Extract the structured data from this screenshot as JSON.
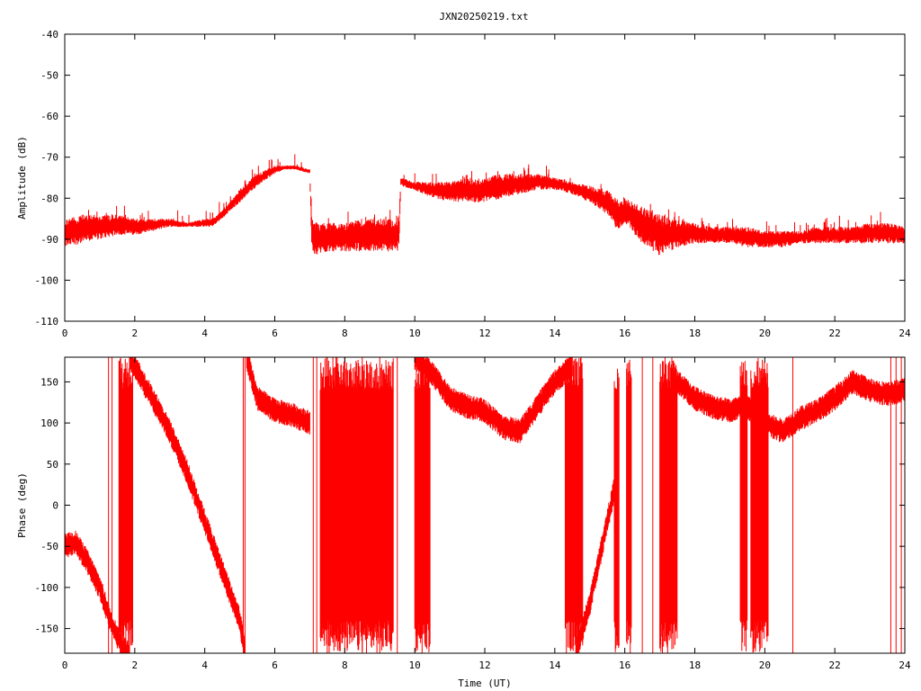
{
  "title": "JXN20250219.txt",
  "chart_data": [
    {
      "type": "line",
      "ylabel": "Amplitude (dB)",
      "xlim": [
        0,
        24
      ],
      "ylim": [
        -110,
        -40
      ],
      "x_ticks": [
        "0",
        "2",
        "4",
        "6",
        "8",
        "10",
        "12",
        "14",
        "16",
        "18",
        "20",
        "22",
        "24"
      ],
      "y_ticks": [
        "-110",
        "-100",
        "-90",
        "-80",
        "-70",
        "-60",
        "-50",
        "-40"
      ],
      "series_color": "#ff0000",
      "series": [
        {
          "x": [
            0,
            0.5,
            1,
            1.5,
            2,
            2.5,
            3,
            3.5,
            4,
            4.2,
            4.5,
            5,
            5.5,
            6,
            6.3,
            6.6,
            7,
            7.05,
            7.1,
            7.5,
            8,
            8.5,
            9,
            9.5,
            9.55,
            9.6,
            10,
            10.5,
            11,
            11.5,
            12,
            12.5,
            13,
            13.5,
            14,
            14.5,
            15,
            15.5,
            15.8,
            16,
            16.5,
            17,
            17.5,
            18,
            18.5,
            19,
            19.5,
            20,
            20.5,
            21,
            21.5,
            22,
            22.5,
            23,
            23.5,
            24
          ],
          "lower": [
            -92,
            -91,
            -90,
            -89,
            -89,
            -88,
            -87,
            -87,
            -87,
            -87,
            -85,
            -81,
            -77,
            -74,
            -73,
            -73,
            -74,
            -91,
            -94,
            -93,
            -93,
            -93,
            -93,
            -93,
            -92,
            -77,
            -78,
            -80,
            -81,
            -81,
            -81,
            -80,
            -79,
            -78,
            -78,
            -79,
            -81,
            -84,
            -88,
            -86,
            -91,
            -94,
            -92,
            -91,
            -91,
            -91,
            -92,
            -92,
            -92,
            -91,
            -91,
            -91,
            -91,
            -91,
            -91,
            -91
          ],
          "upper": [
            -85,
            -84,
            -84,
            -84,
            -85,
            -85,
            -85,
            -86,
            -85,
            -85,
            -83,
            -78,
            -74,
            -72,
            -72,
            -72,
            -73,
            -84,
            -86,
            -86,
            -86,
            -85,
            -85,
            -85,
            -84,
            -75,
            -76,
            -76,
            -76,
            -75,
            -75,
            -74,
            -74,
            -74,
            -75,
            -76,
            -77,
            -78,
            -80,
            -80,
            -82,
            -84,
            -85,
            -86,
            -87,
            -87,
            -87,
            -88,
            -88,
            -88,
            -87,
            -87,
            -87,
            -86,
            -86,
            -87
          ]
        }
      ]
    },
    {
      "type": "line",
      "ylabel": "Phase (deg)",
      "xlabel": "Time (UT)",
      "xlim": [
        0,
        24
      ],
      "ylim": [
        -180,
        180
      ],
      "x_ticks": [
        "0",
        "2",
        "4",
        "6",
        "8",
        "10",
        "12",
        "14",
        "16",
        "18",
        "20",
        "22",
        "24"
      ],
      "y_ticks": [
        "-150",
        "-100",
        "-50",
        "0",
        "50",
        "100",
        "150"
      ],
      "series_color": "#ff0000",
      "series": [
        {
          "segments": [
            {
              "x": [
                0,
                0.3,
                0.6,
                1.0,
                1.3,
                1.6,
                1.85
              ],
              "y": [
                -50,
                -45,
                -65,
                -100,
                -140,
                -170,
                -180
              ]
            },
            {
              "x": [
                1.85,
                2.5,
                3.0,
                3.5,
                4.0,
                4.5,
                5.0,
                5.15
              ],
              "y": [
                180,
                130,
                90,
                40,
                -20,
                -80,
                -140,
                -180
              ]
            },
            {
              "x": [
                5.2,
                5.5,
                6.0,
                6.5,
                7.0
              ],
              "y": [
                180,
                130,
                115,
                110,
                100
              ]
            },
            {
              "x": [
                10.0,
                10.5,
                11.0,
                11.5,
                12.0,
                12.5,
                13.0,
                13.5,
                14.0,
                14.5
              ],
              "y": [
                180,
                160,
                130,
                120,
                115,
                95,
                90,
                120,
                150,
                170
              ]
            },
            {
              "x": [
                14.6,
                15.0,
                15.3,
                15.6,
                15.8
              ],
              "y": [
                -180,
                -120,
                -60,
                0,
                40
              ]
            },
            {
              "x": [
                17.5,
                18.0,
                18.5,
                19.0,
                19.5,
                20.0,
                20.5,
                21.0,
                21.5,
                22.0,
                22.5,
                23.0,
                23.5,
                24.0
              ],
              "y": [
                150,
                130,
                120,
                115,
                120,
                100,
                90,
                105,
                115,
                130,
                150,
                140,
                135,
                140
              ]
            }
          ],
          "wrap_bands": [
            [
              1.55,
              1.95
            ],
            [
              7.3,
              9.4
            ],
            [
              10.0,
              10.45
            ],
            [
              14.3,
              14.8
            ],
            [
              15.7,
              15.85
            ],
            [
              16.05,
              16.2
            ],
            [
              17.0,
              17.5
            ],
            [
              19.3,
              19.5
            ],
            [
              19.6,
              20.1
            ]
          ],
          "spikes": [
            1.25,
            1.35,
            5.1,
            5.15,
            7.1,
            7.2,
            7.5,
            8.0,
            8.5,
            9.0,
            9.5,
            16.5,
            16.8,
            20.8,
            23.6,
            23.75,
            23.9
          ]
        }
      ]
    }
  ]
}
